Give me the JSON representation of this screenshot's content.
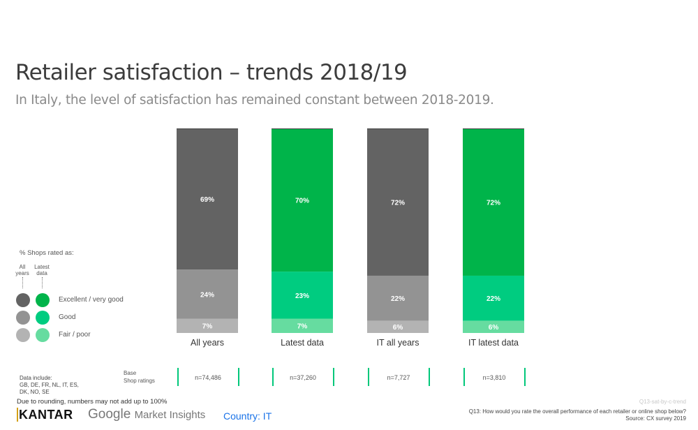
{
  "header": {
    "title": "Retailer satisfaction – trends 2018/19",
    "subtitle": "In Italy, the level of satisfaction has remained constant between 2018-2019."
  },
  "chart_data": {
    "type": "bar",
    "stacked": true,
    "title": "Retailer satisfaction – trends 2018/19",
    "categories": [
      "All years",
      "Latest data",
      "IT all years",
      "IT latest data"
    ],
    "series": [
      {
        "name": "Fair / poor",
        "values": [
          7,
          7,
          6,
          6
        ]
      },
      {
        "name": "Good",
        "values": [
          24,
          23,
          22,
          22
        ]
      },
      {
        "name": "Excellent / very good",
        "values": [
          69,
          70,
          72,
          72
        ]
      }
    ],
    "data_labels": [
      [
        "7%",
        "7%",
        "6%",
        "6%"
      ],
      [
        "24%",
        "23%",
        "22%",
        "22%"
      ],
      [
        "69%",
        "70%",
        "72%",
        "72%"
      ]
    ],
    "colors": {
      "all_years": [
        "#b3b3b3",
        "#939393",
        "#636363"
      ],
      "latest": [
        "#66dca0",
        "#00cc80",
        "#00b44a"
      ]
    },
    "category_palette": [
      "all_years",
      "latest",
      "all_years",
      "latest"
    ],
    "ylim": [
      0,
      100
    ],
    "xlabel": "",
    "ylabel": "",
    "grid": false,
    "legend_position": "left"
  },
  "legend": {
    "title": "% Shops rated as:",
    "col_all": "All years",
    "col_latest": "Latest data",
    "items": [
      {
        "label": "Excellent / very good",
        "all_color": "#636363",
        "latest_color": "#00b44a"
      },
      {
        "label": "Good",
        "all_color": "#939393",
        "latest_color": "#00cc80"
      },
      {
        "label": "Fair / poor",
        "all_color": "#b3b3b3",
        "latest_color": "#66dca0"
      }
    ]
  },
  "base": {
    "label_line1": "Base",
    "label_line2": "Shop ratings",
    "values": [
      "n=74,486",
      "n=37,260",
      "n=7,727",
      "n=3,810"
    ],
    "separator_color": "#00c77a"
  },
  "notes": {
    "data_include_line1": "Data include:",
    "data_include_line2": "GB, DE, FR, NL, IT, ES,",
    "data_include_line3": "DK, NO, SE",
    "rounding": "Due to rounding, numbers may not add up to 100%",
    "code": "Q13-sat-by-c-trend",
    "question": "Q13: How would you rate the overall performance of each retailer or online shop below?",
    "source": "Source: CX survey 2019"
  },
  "footer": {
    "kantar_k": "K",
    "kantar_rest": "ANTAR",
    "google": "Google",
    "market_insights": "Market Insights",
    "country": "Country: IT"
  }
}
